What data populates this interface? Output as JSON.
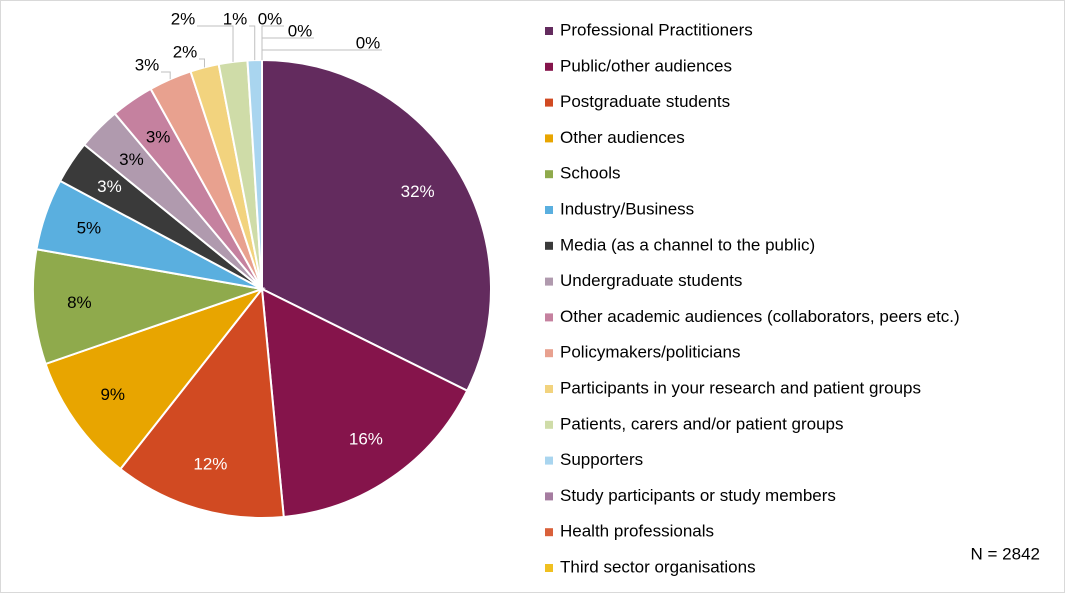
{
  "chart_data": {
    "type": "pie",
    "categories": [
      "Professional Practitioners",
      "Public/other audiences",
      "Postgraduate students",
      "Other audiences",
      "Schools",
      "Industry/Business",
      "Media (as a channel to the public)",
      "Undergraduate students",
      "Other academic audiences (collaborators, peers etc.)",
      "Policymakers/politicians",
      "Participants in your research and patient groups",
      "Patients, carers and/or patient groups",
      "Supporters",
      "Study participants or study members",
      "Health professionals",
      "Third sector organisations"
    ],
    "values": [
      32,
      16,
      12,
      9,
      8,
      5,
      3,
      3,
      3,
      3,
      2,
      2,
      1,
      0,
      0,
      0
    ],
    "value_labels": [
      "32%",
      "16%",
      "12%",
      "9%",
      "8%",
      "5%",
      "3%",
      "3%",
      "3%",
      "3%",
      "2%",
      "2%",
      "1%",
      "0%",
      "0%",
      "0%"
    ],
    "colors": [
      "#632b5e",
      "#85144b",
      "#d14a22",
      "#e8a500",
      "#8faa4c",
      "#5aafdf",
      "#3a3a3a",
      "#b09aae",
      "#c5819f",
      "#e8a18f",
      "#f2d37e",
      "#cfdca8",
      "#a9d5ef",
      "#a57ca0",
      "#d9603a",
      "#f0c020"
    ],
    "legend": "right",
    "annotation": "N = 2842"
  }
}
